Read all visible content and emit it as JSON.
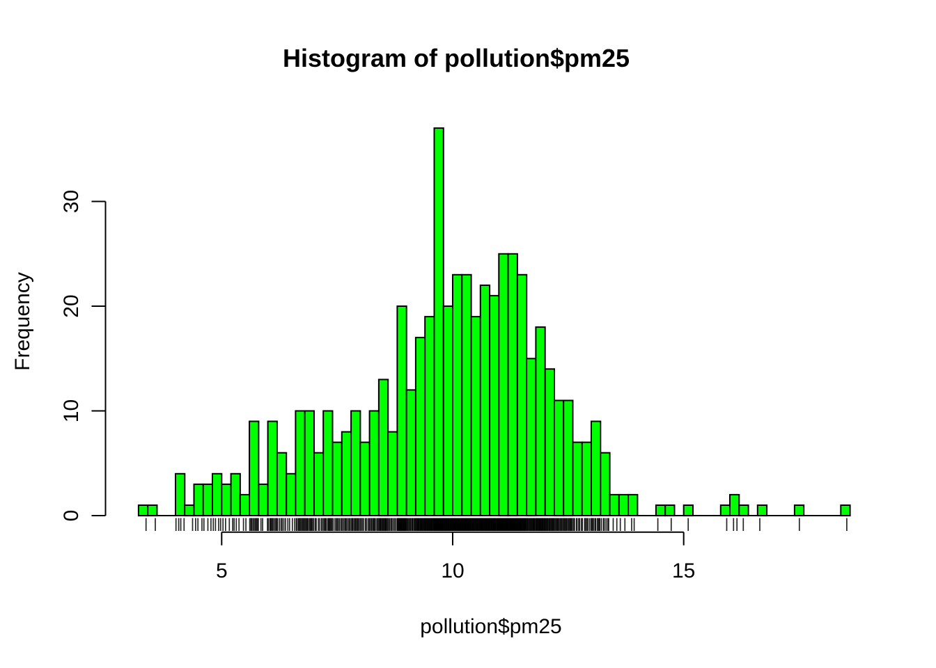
{
  "chart_data": {
    "type": "bar",
    "subtype": "histogram",
    "title": "Histogram of pollution$pm25",
    "xlabel": "pollution$pm25",
    "ylabel": "Frequency",
    "bin_start": 3.2,
    "bin_width": 0.2,
    "counts": [
      1,
      1,
      0,
      0,
      4,
      1,
      3,
      3,
      4,
      3,
      4,
      2,
      9,
      3,
      9,
      6,
      4,
      10,
      10,
      6,
      10,
      7,
      8,
      10,
      7,
      10,
      13,
      8,
      20,
      12,
      17,
      19,
      37,
      20,
      23,
      23,
      19,
      22,
      21,
      25,
      25,
      23,
      15,
      18,
      14,
      11,
      11,
      7,
      7,
      9,
      6,
      2,
      2,
      2,
      0,
      0,
      1,
      1,
      0,
      1,
      0,
      0,
      0,
      1,
      2,
      1,
      0,
      1,
      0,
      0,
      0,
      1,
      0,
      0,
      0,
      0,
      1
    ],
    "total_observations": 576,
    "xlim": [
      3.2,
      18.6
    ],
    "ylim": [
      0,
      37
    ],
    "grid": false,
    "legend": false,
    "rug_present": true,
    "x_axis": {
      "ticks": [
        {
          "value": 5,
          "label": "5"
        },
        {
          "value": 10,
          "label": "10"
        },
        {
          "value": 15,
          "label": "15"
        }
      ]
    },
    "y_axis": {
      "ticks": [
        {
          "value": 0,
          "label": "0"
        },
        {
          "value": 10,
          "label": "10"
        },
        {
          "value": 20,
          "label": "20"
        },
        {
          "value": 30,
          "label": "30"
        }
      ]
    },
    "colors": {
      "bar_fill": "#00FF00",
      "bar_stroke": "#000000",
      "axis": "#000000",
      "text": "#000000",
      "background": "#FFFFFF"
    }
  }
}
